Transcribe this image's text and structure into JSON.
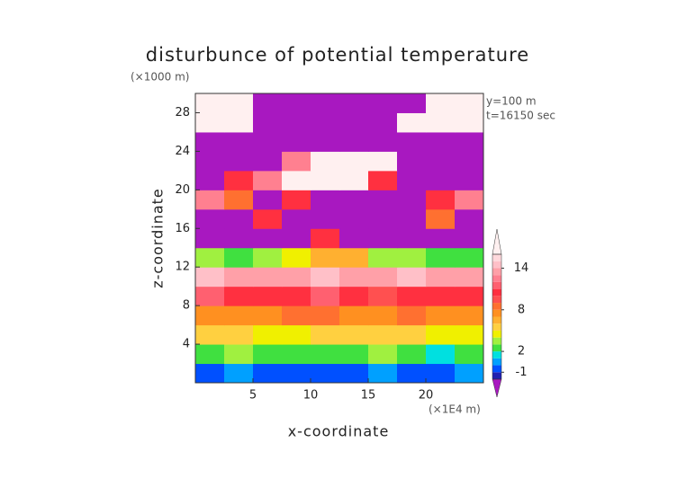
{
  "chart_data": {
    "type": "heatmap",
    "title": "disturbunce of potential temperature",
    "y_unit": "(×1000 m)",
    "x_unit": "(×1E4 m)",
    "annotations": [
      "y=100 m",
      "t=16150 sec"
    ],
    "xlabel": "x-coordinate",
    "ylabel": "z-coordinate",
    "xlim": [
      0,
      25
    ],
    "ylim": [
      0,
      30
    ],
    "xticks": [
      5,
      10,
      15,
      20
    ],
    "yticks": [
      4,
      8,
      12,
      16,
      20,
      24,
      28
    ],
    "xbins": [
      0,
      2.5,
      5,
      7.5,
      10,
      12.5,
      15,
      17.5,
      20,
      22.5,
      25
    ],
    "ybins": [
      0,
      2,
      4,
      6,
      8,
      10,
      12,
      14,
      16,
      18,
      20,
      22,
      24,
      26,
      28,
      30
    ],
    "values": [
      [
        -1,
        0,
        -1,
        -1,
        -1,
        -1,
        0,
        -1,
        -1,
        0
      ],
      [
        2,
        3,
        2,
        2,
        2,
        2,
        3,
        2,
        1,
        2
      ],
      [
        5,
        5,
        4,
        4,
        5,
        5,
        5,
        5,
        4,
        4
      ],
      [
        7,
        7,
        7,
        8,
        8,
        7,
        7,
        8,
        7,
        7
      ],
      [
        11,
        10,
        10,
        10,
        11,
        10,
        9,
        10,
        10,
        10
      ],
      [
        14,
        13,
        13,
        13,
        14,
        13,
        13,
        14,
        13,
        13
      ],
      [
        3,
        2,
        3,
        4,
        6,
        6,
        3,
        3,
        2,
        2
      ],
      [
        -5,
        -5,
        -5,
        -5,
        10,
        -5,
        -5,
        -5,
        -5,
        -5
      ],
      [
        -5,
        -5,
        10,
        -5,
        -5,
        -5,
        -5,
        -5,
        8,
        -5
      ],
      [
        12,
        8,
        -5,
        10,
        -5,
        -5,
        -5,
        -5,
        10,
        12
      ],
      [
        -5,
        10,
        12,
        16,
        18,
        18,
        10,
        -5,
        -5,
        -5
      ],
      [
        -5,
        -5,
        -5,
        12,
        18,
        18,
        18,
        -5,
        -5,
        -5
      ],
      [
        -5,
        -5,
        -5,
        -5,
        -5,
        -5,
        -5,
        -5,
        -5,
        -5
      ],
      [
        18,
        18,
        -5,
        -5,
        -5,
        -5,
        -5,
        18,
        18,
        18
      ],
      [
        18,
        18,
        -5,
        -5,
        -5,
        -5,
        -5,
        -5,
        18,
        18
      ]
    ],
    "colorbar": {
      "levels": [
        -2,
        -1,
        0,
        1,
        2,
        3,
        4,
        5,
        6,
        7,
        8,
        9,
        10,
        11,
        12,
        13,
        14,
        15,
        16
      ],
      "colors": [
        "#2020b0",
        "#0050ff",
        "#00a0ff",
        "#00e0e0",
        "#40e040",
        "#a0f040",
        "#f0f000",
        "#ffd040",
        "#ffb030",
        "#ff9020",
        "#ff7030",
        "#ff5050",
        "#ff3040",
        "#ff6070",
        "#ff8090",
        "#ffa0a8",
        "#ffc0c8",
        "#ffd8dc"
      ],
      "under_color": "#a818c0",
      "over_color": "#fff0f0",
      "ticks": [
        14,
        8,
        2,
        -1
      ]
    }
  }
}
